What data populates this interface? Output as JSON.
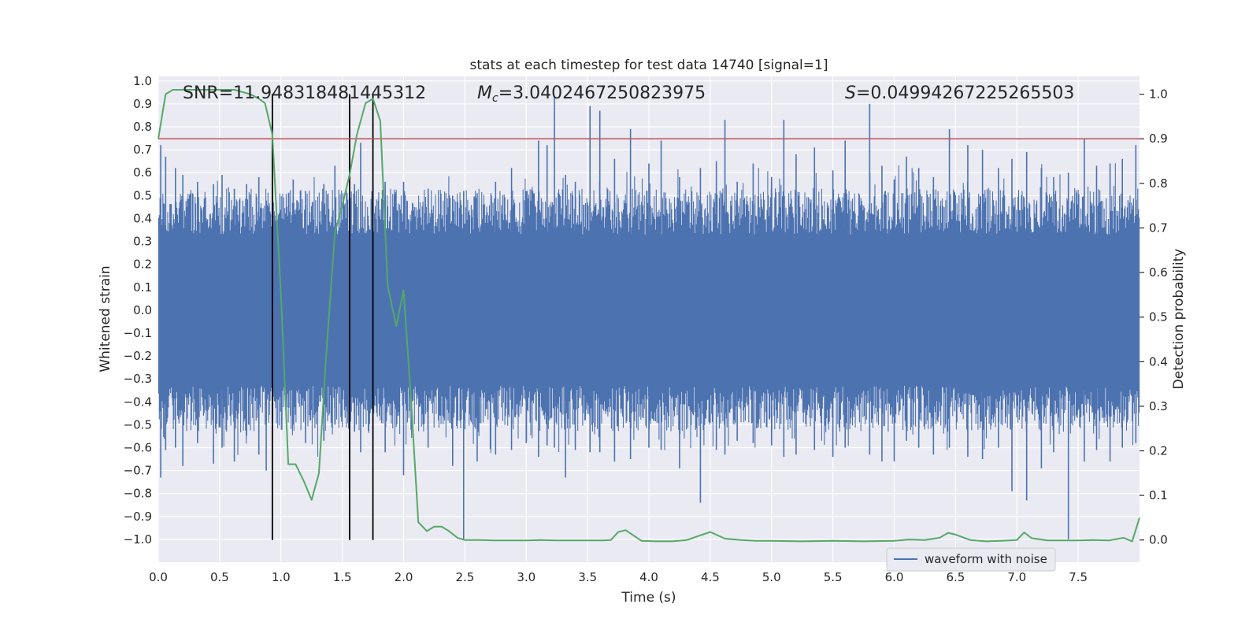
{
  "chart_data": {
    "type": "line",
    "title": "stats at each timestep for test data 14740 [signal=1]",
    "xlabel": "Time (s)",
    "ylabel": "Whitened strain",
    "y2label": "Detection probability",
    "xlim": [
      0.0,
      8.0
    ],
    "ylim": [
      -1.1,
      1.02
    ],
    "y2lim": [
      -0.05,
      1.04
    ],
    "x_ticks": [
      "0.0",
      "0.5",
      "1.0",
      "1.5",
      "2.0",
      "2.5",
      "3.0",
      "3.5",
      "4.0",
      "4.5",
      "5.0",
      "5.5",
      "6.0",
      "6.5",
      "7.0",
      "7.5"
    ],
    "y_ticks": [
      "1.0",
      "0.9",
      "0.8",
      "0.7",
      "0.6",
      "0.5",
      "0.4",
      "0.3",
      "0.2",
      "0.1",
      "0.0",
      "−0.1",
      "−0.2",
      "−0.3",
      "−0.4",
      "−0.5",
      "−0.6",
      "−0.7",
      "−0.8",
      "−0.9",
      "−1.0"
    ],
    "y2_ticks": [
      "1.0",
      "0.9",
      "0.8",
      "0.7",
      "0.6",
      "0.5",
      "0.4",
      "0.3",
      "0.2",
      "0.1",
      "0.0"
    ],
    "grid": true,
    "legend": {
      "label": "waveform with noise",
      "placement": "bottom-right"
    },
    "annotations": {
      "snr": "SNR=11.948318481445312",
      "mc_symbol": "M",
      "mc_sub": "c",
      "mc_value": "=3.0402467250823975",
      "s_symbol": "S",
      "s_value": "=0.04994267225265503"
    },
    "threshold": {
      "value": 0.9,
      "axis": "y2",
      "color": "#c44e52"
    },
    "vertical_lines": [
      0.93,
      1.56,
      1.75
    ],
    "waveform": {
      "name": "waveform with noise",
      "color": "#4c72b0",
      "core_amplitude": 0.33,
      "spikes": [
        {
          "x": 0.02,
          "top": 0.72,
          "bottom": -0.73
        },
        {
          "x": 0.06,
          "top": 0.67,
          "bottom": -0.61
        },
        {
          "x": 0.14,
          "top": 0.62,
          "bottom": -0.6
        },
        {
          "x": 0.2,
          "top": 0.59,
          "bottom": -0.68
        },
        {
          "x": 0.32,
          "top": 0.56,
          "bottom": -0.58
        },
        {
          "x": 0.45,
          "top": 0.55,
          "bottom": -0.67
        },
        {
          "x": 0.52,
          "top": 0.59,
          "bottom": -0.6
        },
        {
          "x": 0.62,
          "top": 0.53,
          "bottom": -0.66
        },
        {
          "x": 0.72,
          "top": 0.55,
          "bottom": -0.55
        },
        {
          "x": 0.82,
          "top": 0.58,
          "bottom": -0.63
        },
        {
          "x": 0.88,
          "top": 0.45,
          "bottom": -0.7
        },
        {
          "x": 1.1,
          "top": 0.57,
          "bottom": -0.5
        },
        {
          "x": 1.2,
          "top": 0.52,
          "bottom": -0.58
        },
        {
          "x": 1.35,
          "top": 0.55,
          "bottom": -0.57
        },
        {
          "x": 1.44,
          "top": 0.63,
          "bottom": -0.5
        },
        {
          "x": 1.6,
          "top": 0.55,
          "bottom": -0.53
        },
        {
          "x": 1.65,
          "top": 0.73,
          "bottom": -0.62
        },
        {
          "x": 1.85,
          "top": 0.56,
          "bottom": -0.62
        },
        {
          "x": 2.0,
          "top": 0.56,
          "bottom": -0.72
        },
        {
          "x": 2.2,
          "top": 0.53,
          "bottom": -0.6
        },
        {
          "x": 2.4,
          "top": 0.5,
          "bottom": -0.68
        },
        {
          "x": 2.49,
          "top": 0.52,
          "bottom": -1.0
        },
        {
          "x": 2.6,
          "top": 0.51,
          "bottom": -0.66
        },
        {
          "x": 2.75,
          "top": 0.56,
          "bottom": -0.63
        },
        {
          "x": 2.88,
          "top": 0.62,
          "bottom": -0.61
        },
        {
          "x": 3.0,
          "top": 0.52,
          "bottom": -0.58
        },
        {
          "x": 3.1,
          "top": 0.74,
          "bottom": -0.64
        },
        {
          "x": 3.17,
          "top": 0.72,
          "bottom": -0.59
        },
        {
          "x": 3.23,
          "top": 0.93,
          "bottom": -0.6
        },
        {
          "x": 3.32,
          "top": 0.59,
          "bottom": -0.73
        },
        {
          "x": 3.4,
          "top": 0.56,
          "bottom": -0.61
        },
        {
          "x": 3.52,
          "top": 0.89,
          "bottom": -0.62
        },
        {
          "x": 3.6,
          "top": 0.87,
          "bottom": -0.62
        },
        {
          "x": 3.72,
          "top": 0.66,
          "bottom": -0.66
        },
        {
          "x": 3.85,
          "top": 0.79,
          "bottom": -0.65
        },
        {
          "x": 4.0,
          "top": 0.64,
          "bottom": -0.6
        },
        {
          "x": 4.1,
          "top": 0.74,
          "bottom": -0.61
        },
        {
          "x": 4.25,
          "top": 0.58,
          "bottom": -0.69
        },
        {
          "x": 4.42,
          "top": 0.62,
          "bottom": -0.84
        },
        {
          "x": 4.55,
          "top": 0.65,
          "bottom": -0.61
        },
        {
          "x": 4.62,
          "top": 0.83,
          "bottom": -0.63
        },
        {
          "x": 4.72,
          "top": 0.56,
          "bottom": -0.57
        },
        {
          "x": 4.85,
          "top": 0.64,
          "bottom": -0.58
        },
        {
          "x": 5.0,
          "top": 0.58,
          "bottom": -0.59
        },
        {
          "x": 5.1,
          "top": 0.83,
          "bottom": -0.64
        },
        {
          "x": 5.2,
          "top": 0.68,
          "bottom": -0.63
        },
        {
          "x": 5.35,
          "top": 0.71,
          "bottom": -0.61
        },
        {
          "x": 5.5,
          "top": 0.61,
          "bottom": -0.64
        },
        {
          "x": 5.6,
          "top": 0.74,
          "bottom": -0.6
        },
        {
          "x": 5.8,
          "top": 0.9,
          "bottom": -0.63
        },
        {
          "x": 5.9,
          "top": 0.63,
          "bottom": -0.66
        },
        {
          "x": 6.0,
          "top": 0.57,
          "bottom": -0.66
        },
        {
          "x": 6.1,
          "top": 0.67,
          "bottom": -0.57
        },
        {
          "x": 6.2,
          "top": 0.62,
          "bottom": -0.6
        },
        {
          "x": 6.32,
          "top": 0.58,
          "bottom": -0.63
        },
        {
          "x": 6.45,
          "top": 0.79,
          "bottom": -0.6
        },
        {
          "x": 6.6,
          "top": 0.72,
          "bottom": -0.64
        },
        {
          "x": 6.72,
          "top": 0.7,
          "bottom": -0.65
        },
        {
          "x": 6.85,
          "top": 0.62,
          "bottom": -0.6
        },
        {
          "x": 6.96,
          "top": 0.66,
          "bottom": -0.79
        },
        {
          "x": 7.08,
          "top": 0.69,
          "bottom": -0.83
        },
        {
          "x": 7.2,
          "top": 0.62,
          "bottom": -0.69
        },
        {
          "x": 7.3,
          "top": 0.58,
          "bottom": -0.62
        },
        {
          "x": 7.42,
          "top": 0.6,
          "bottom": -1.0
        },
        {
          "x": 7.55,
          "top": 0.75,
          "bottom": -0.66
        },
        {
          "x": 7.65,
          "top": 0.63,
          "bottom": -0.61
        },
        {
          "x": 7.76,
          "top": 0.64,
          "bottom": -0.66
        },
        {
          "x": 7.86,
          "top": 0.66,
          "bottom": -0.6
        },
        {
          "x": 7.97,
          "top": 0.72,
          "bottom": -0.58
        }
      ]
    },
    "detection_probability": {
      "color": "#55a868",
      "x": [
        0.0,
        0.06,
        0.12,
        0.25,
        0.5,
        0.62,
        0.75,
        0.82,
        0.87,
        0.93,
        1.0,
        1.06,
        1.12,
        1.19,
        1.25,
        1.31,
        1.37,
        1.44,
        1.5,
        1.56,
        1.62,
        1.69,
        1.75,
        1.81,
        1.87,
        1.94,
        2.0,
        2.06,
        2.12,
        2.19,
        2.25,
        2.31,
        2.37,
        2.44,
        2.5,
        2.62,
        2.75,
        2.87,
        3.0,
        3.12,
        3.25,
        3.37,
        3.5,
        3.62,
        3.69,
        3.75,
        3.81,
        3.94,
        4.06,
        4.19,
        4.31,
        4.5,
        4.62,
        4.75,
        4.87,
        5.0,
        5.25,
        5.5,
        5.75,
        6.0,
        6.12,
        6.25,
        6.37,
        6.44,
        6.5,
        6.62,
        6.75,
        6.87,
        7.0,
        7.06,
        7.12,
        7.25,
        7.37,
        7.5,
        7.62,
        7.75,
        7.87,
        7.94,
        8.0
      ],
      "values": [
        0.9,
        1.0,
        1.01,
        1.01,
        1.01,
        1.01,
        1.0,
        0.99,
        0.98,
        0.91,
        0.55,
        0.17,
        0.17,
        0.13,
        0.09,
        0.15,
        0.42,
        0.69,
        0.75,
        0.82,
        0.91,
        0.98,
        0.99,
        0.94,
        0.57,
        0.48,
        0.56,
        0.32,
        0.04,
        0.02,
        0.03,
        0.03,
        0.02,
        0.005,
        0.0,
        0.0,
        -0.001,
        -0.001,
        -0.001,
        0.0,
        -0.001,
        -0.001,
        -0.001,
        -0.001,
        0.0,
        0.018,
        0.022,
        -0.002,
        -0.003,
        -0.003,
        0.0,
        0.018,
        0.003,
        0.0,
        -0.002,
        -0.002,
        -0.003,
        -0.002,
        -0.003,
        -0.002,
        0.001,
        0.0,
        0.005,
        0.016,
        0.012,
        0.0,
        -0.003,
        -0.002,
        0.0,
        0.017,
        0.004,
        -0.001,
        -0.001,
        -0.001,
        0.0,
        -0.001,
        0.005,
        -0.003,
        0.05
      ]
    }
  }
}
